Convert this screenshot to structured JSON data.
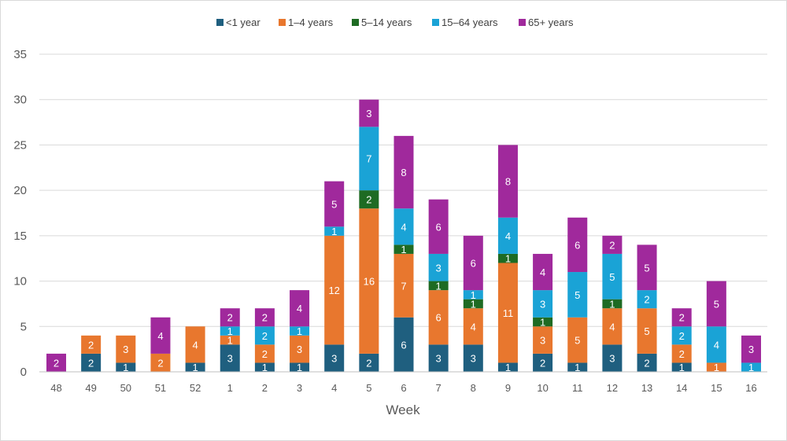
{
  "chart_data": {
    "type": "bar",
    "stacked": true,
    "title": "",
    "xlabel": "Week",
    "ylabel": "",
    "ylim": [
      0,
      35
    ],
    "yticks": [
      0,
      5,
      10,
      15,
      20,
      25,
      30,
      35
    ],
    "grid": true,
    "legend_position": "top",
    "categories": [
      "48",
      "49",
      "50",
      "51",
      "52",
      "1",
      "2",
      "3",
      "4",
      "5",
      "6",
      "7",
      "8",
      "9",
      "10",
      "11",
      "12",
      "13",
      "14",
      "15",
      "16"
    ],
    "series": [
      {
        "name": "<1 year",
        "color": "#1f5f7f",
        "values": [
          0,
          2,
          1,
          0,
          1,
          3,
          1,
          1,
          3,
          2,
          6,
          3,
          3,
          1,
          2,
          1,
          3,
          2,
          1,
          0,
          0
        ]
      },
      {
        "name": "1–4 years",
        "color": "#e8772e",
        "values": [
          0,
          2,
          3,
          2,
          4,
          1,
          2,
          3,
          12,
          16,
          7,
          6,
          4,
          11,
          3,
          5,
          4,
          5,
          2,
          1,
          0
        ]
      },
      {
        "name": "5–14 years",
        "color": "#1e6b23",
        "values": [
          0,
          0,
          0,
          0,
          0,
          0,
          0,
          0,
          0,
          2,
          1,
          1,
          1,
          1,
          1,
          0,
          1,
          0,
          0,
          0,
          0
        ]
      },
      {
        "name": "15–64 years",
        "color": "#1aa3d6",
        "values": [
          0,
          0,
          0,
          0,
          0,
          1,
          2,
          1,
          1,
          7,
          4,
          3,
          1,
          4,
          3,
          5,
          5,
          2,
          2,
          4,
          1
        ]
      },
      {
        "name": "65+ years",
        "color": "#a0299c",
        "values": [
          2,
          0,
          0,
          4,
          0,
          2,
          2,
          4,
          5,
          3,
          8,
          6,
          6,
          8,
          4,
          6,
          2,
          5,
          2,
          5,
          3
        ]
      }
    ]
  }
}
